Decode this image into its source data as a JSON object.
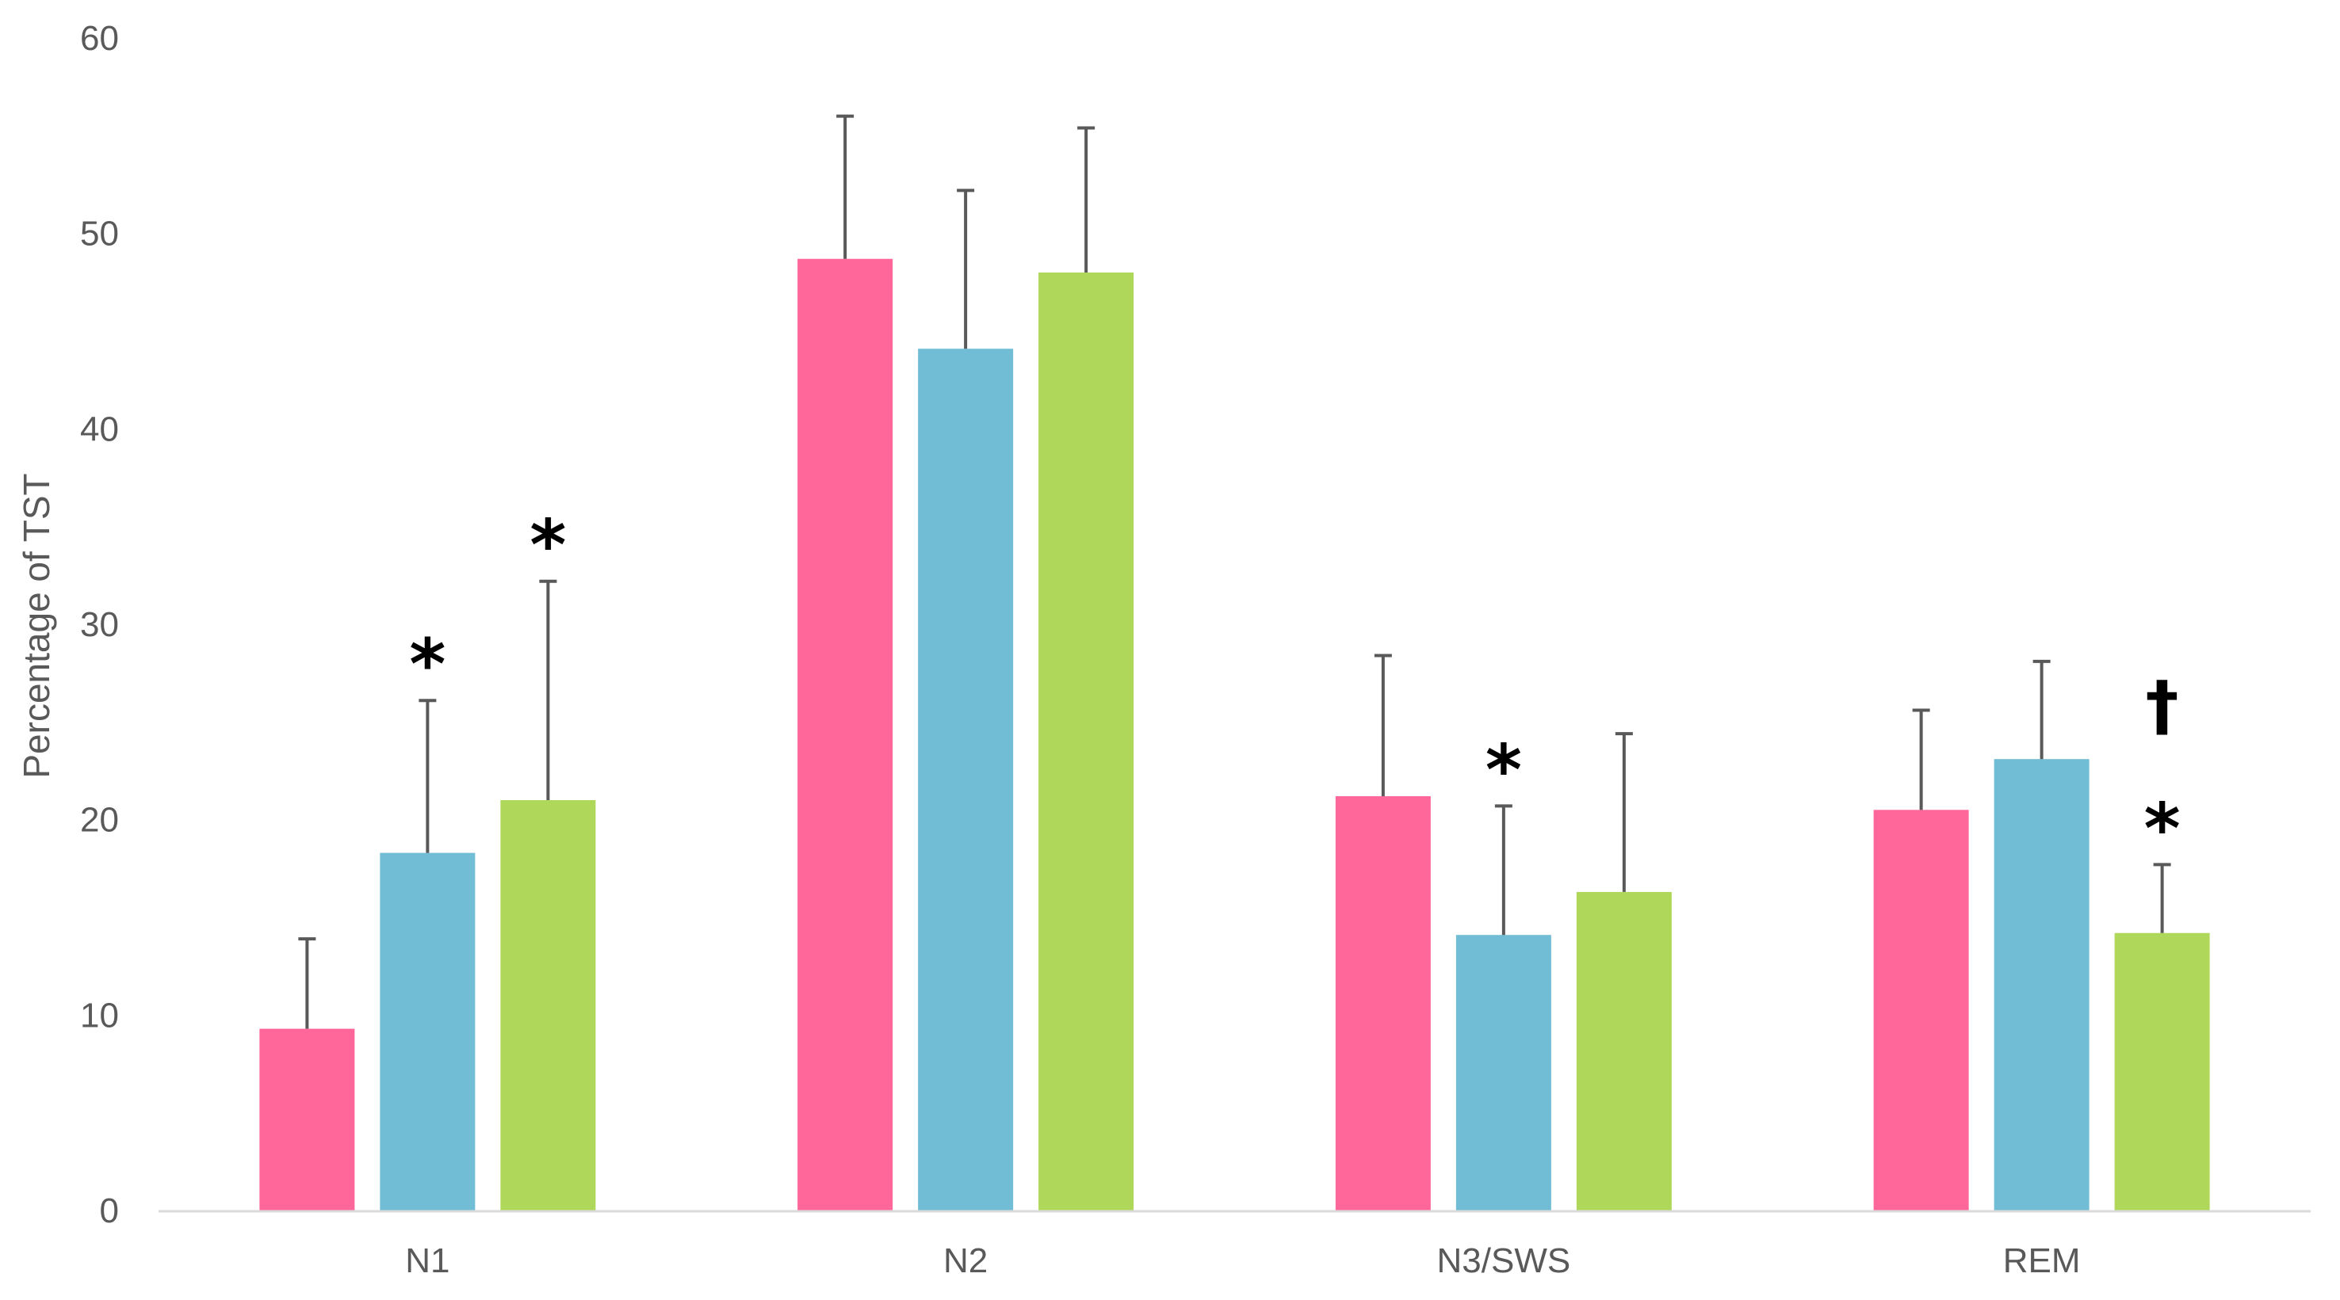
{
  "chart_data": {
    "type": "bar",
    "title": "",
    "xlabel": "",
    "ylabel": "Percentage of TST",
    "ylim": [
      0,
      60
    ],
    "yticks": [
      0,
      10,
      20,
      30,
      40,
      50,
      60
    ],
    "grid": false,
    "legend": "none",
    "categories": [
      "N1",
      "N2",
      "N3/SWS",
      "REM"
    ],
    "series": [
      {
        "color": "#ff6699",
        "values": [
          9.3,
          48.7,
          21.2,
          20.5
        ],
        "errors": [
          4.6,
          7.3,
          7.2,
          5.1
        ],
        "annotations": [
          "",
          "",
          "",
          ""
        ]
      },
      {
        "color": "#72bdd6",
        "values": [
          18.3,
          44.1,
          14.1,
          23.1
        ],
        "errors": [
          7.8,
          8.1,
          6.6,
          5.0
        ],
        "annotations": [
          "*",
          "",
          "*",
          ""
        ]
      },
      {
        "color": "#afd75a",
        "values": [
          21.0,
          48.0,
          16.3,
          14.2
        ],
        "errors": [
          11.2,
          7.4,
          8.1,
          3.5
        ],
        "annotations": [
          "*",
          "",
          "",
          "*†"
        ]
      }
    ]
  }
}
